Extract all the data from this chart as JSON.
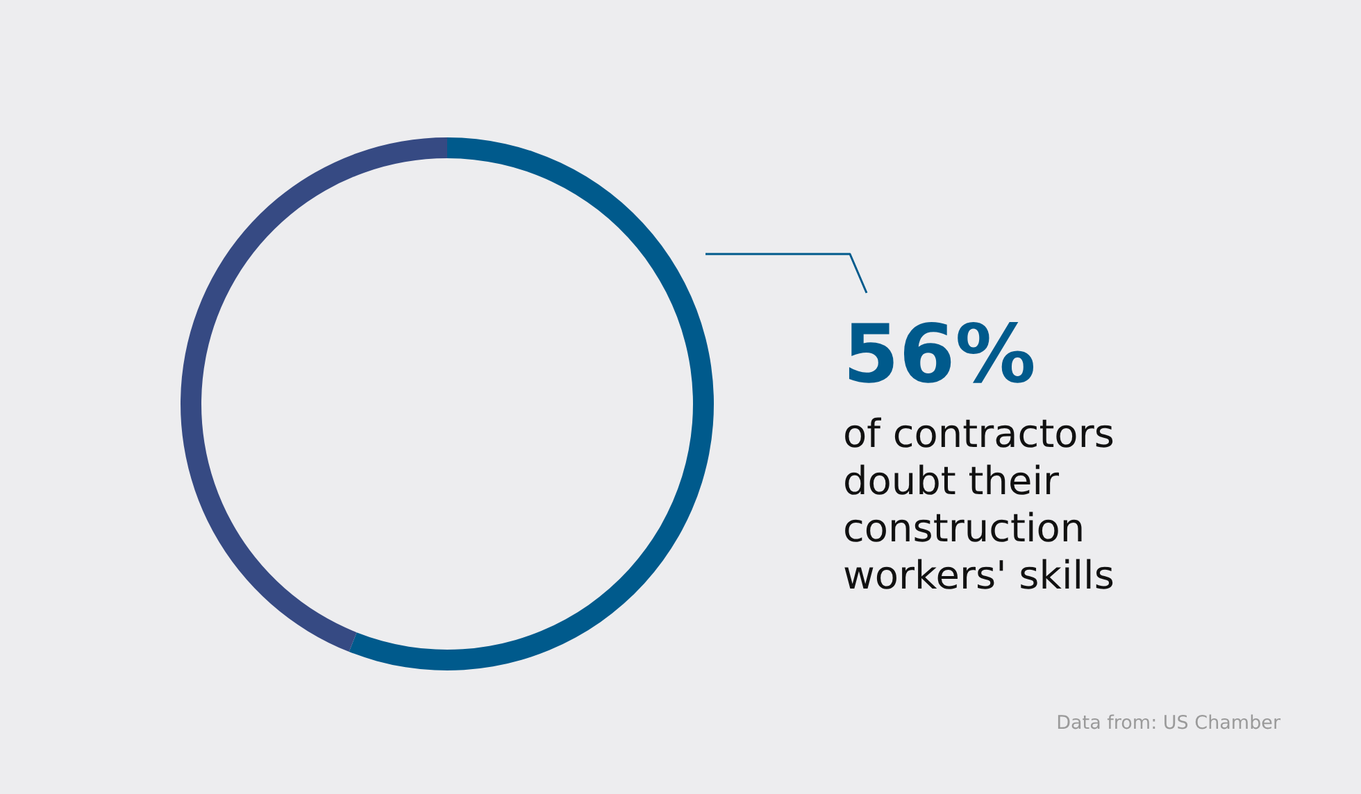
{
  "chart_data": {
    "type": "donut",
    "categories": [
      "of contractors doubt their construction workers' skills",
      null
    ],
    "values": [
      56,
      44
    ],
    "colors": [
      "#005a8c",
      "#364a83"
    ],
    "value_labels": [
      "56%",
      null
    ],
    "annotations": [
      "Data from: US Chamber"
    ]
  }
}
